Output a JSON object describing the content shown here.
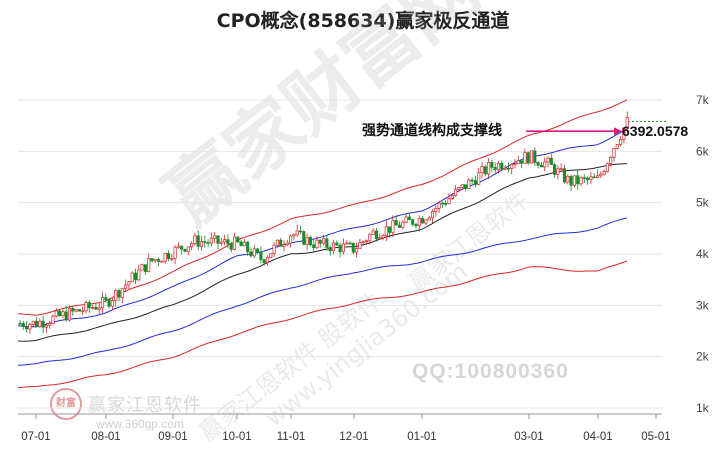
{
  "title": "CPO概念(858634)赢家极反通道",
  "chart_data": {
    "type": "candlestick",
    "title": "CPO概念(858634)赢家极反通道",
    "x_ticks": [
      "07-01",
      "08-01",
      "09-01",
      "10-01",
      "11-01",
      "12-01",
      "01-01",
      "03-01",
      "04-01",
      "05-01"
    ],
    "y_ticks": [
      "1k",
      "2k",
      "3k",
      "4k",
      "5k",
      "6k",
      "7k"
    ],
    "ylim": [
      1000,
      7000
    ],
    "grid": true,
    "annotation": {
      "text": "强势通道线构成支撑线",
      "value": "6392.0578"
    },
    "bands": [
      {
        "color": "#d62728",
        "points": [
          [
            "07-01",
            2820
          ],
          [
            "08-01",
            3100
          ],
          [
            "09-01",
            3650
          ],
          [
            "10-01",
            4250
          ],
          [
            "11-01",
            4670
          ],
          [
            "12-01",
            4950
          ],
          [
            "01-01",
            5350
          ],
          [
            "03-01",
            6300
          ],
          [
            "04-01",
            6780
          ],
          [
            "04-20",
            7000
          ]
        ]
      },
      {
        "color": "#1f2fd6",
        "points": [
          [
            "07-01",
            2600
          ],
          [
            "08-01",
            2850
          ],
          [
            "09-01",
            3350
          ],
          [
            "10-01",
            3950
          ],
          [
            "11-01",
            4200
          ],
          [
            "12-01",
            4500
          ],
          [
            "01-01",
            4850
          ],
          [
            "03-01",
            5900
          ],
          [
            "04-01",
            6150
          ],
          [
            "04-20",
            6420
          ]
        ]
      },
      {
        "color": "#222222",
        "points": [
          [
            "07-01",
            2320
          ],
          [
            "08-01",
            2600
          ],
          [
            "09-01",
            3000
          ],
          [
            "10-01",
            3600
          ],
          [
            "11-01",
            4000
          ],
          [
            "12-01",
            4150
          ],
          [
            "01-01",
            4500
          ],
          [
            "03-01",
            5500
          ],
          [
            "04-01",
            5700
          ],
          [
            "04-20",
            5750
          ]
        ]
      },
      {
        "color": "#1f2fd6",
        "points": [
          [
            "07-01",
            1850
          ],
          [
            "08-01",
            2100
          ],
          [
            "09-01",
            2500
          ],
          [
            "10-01",
            3000
          ],
          [
            "11-01",
            3350
          ],
          [
            "12-01",
            3650
          ],
          [
            "01-01",
            3850
          ],
          [
            "03-01",
            4300
          ],
          [
            "04-01",
            4500
          ],
          [
            "04-20",
            4720
          ]
        ]
      },
      {
        "color": "#d62728",
        "points": [
          [
            "07-01",
            1400
          ],
          [
            "08-01",
            1650
          ],
          [
            "09-01",
            2000
          ],
          [
            "10-01",
            2450
          ],
          [
            "11-01",
            2750
          ],
          [
            "12-01",
            3050
          ],
          [
            "01-01",
            3250
          ],
          [
            "03-01",
            3750
          ],
          [
            "04-01",
            3650
          ],
          [
            "04-20",
            3890
          ]
        ]
      }
    ],
    "price_path": [
      [
        "07-01",
        2650
      ],
      [
        "08-01",
        3050
      ],
      [
        "08-20",
        3850
      ],
      [
        "09-01",
        4050
      ],
      [
        "09-12",
        4250
      ],
      [
        "10-01",
        4200
      ],
      [
        "10-12",
        3900
      ],
      [
        "11-01",
        4400
      ],
      [
        "11-12",
        4200
      ],
      [
        "12-01",
        4100
      ],
      [
        "12-10",
        4400
      ],
      [
        "01-01",
        4700
      ],
      [
        "01-20",
        5250
      ],
      [
        "02-10",
        5700
      ],
      [
        "03-01",
        5900
      ],
      [
        "03-10",
        5750
      ],
      [
        "03-20",
        5400
      ],
      [
        "04-01",
        5450
      ],
      [
        "04-10",
        6100
      ],
      [
        "04-20",
        6600
      ]
    ]
  }
}
